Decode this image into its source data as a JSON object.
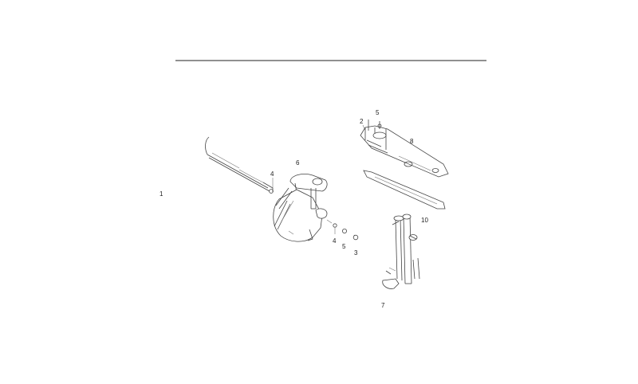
{
  "callouts": {
    "c1": "1",
    "c2": "2",
    "c3": "3",
    "c4a": "4",
    "c4b": "4",
    "c5a": "5",
    "c5b": "5",
    "c6": "6",
    "c7": "7",
    "c8": "8",
    "c10": "10"
  }
}
